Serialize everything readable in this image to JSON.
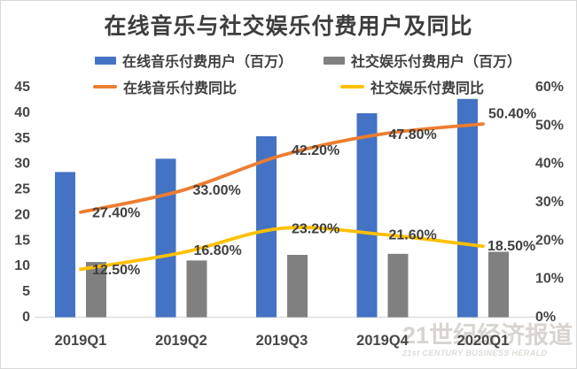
{
  "title": "在线音乐与社交娱乐付费用户及同比",
  "watermark": {
    "cn": "21世纪经济报道",
    "en": "21st CENTURY BUSINESS HERALD"
  },
  "colors": {
    "music_bar": "#4472C4",
    "social_bar": "#808080",
    "music_line": "#ED7D31",
    "social_line": "#FFC000",
    "axis_text": "#474747",
    "label_text": "#3f3f3f",
    "title_text": "#3d3d3d",
    "axis_line": "#d9d9d9"
  },
  "chart_data": {
    "type": "bar",
    "title": "在线音乐与社交娱乐付费用户及同比",
    "categories": [
      "2019Q1",
      "2019Q2",
      "2019Q3",
      "2019Q4",
      "2020Q1"
    ],
    "series": [
      {
        "name": "在线音乐付费用户（百万）",
        "type": "bar",
        "axis": "left",
        "color": "#4472C4",
        "values": [
          28.4,
          31.0,
          35.4,
          39.9,
          42.7
        ]
      },
      {
        "name": "社交娱乐付费用户（百万）",
        "type": "bar",
        "axis": "left",
        "color": "#808080",
        "values": [
          10.8,
          11.1,
          12.2,
          12.4,
          12.8
        ]
      },
      {
        "name": "在线音乐付费同比",
        "type": "line",
        "axis": "right",
        "color": "#ED7D31",
        "values": [
          27.4,
          33.0,
          42.2,
          47.8,
          50.4
        ],
        "point_labels": [
          "27.40%",
          "33.00%",
          "42.20%",
          "47.80%",
          "50.40%"
        ]
      },
      {
        "name": "社交娱乐付费同比",
        "type": "line",
        "axis": "right",
        "color": "#FFC000",
        "values": [
          12.5,
          16.8,
          23.2,
          21.6,
          18.5
        ],
        "point_labels": [
          "12.50%",
          "16.80%",
          "23.20%",
          "21.60%",
          "18.50%"
        ]
      }
    ],
    "left_axis": {
      "min": 0,
      "max": 45,
      "step": 5
    },
    "right_axis": {
      "min": 0,
      "max": 60,
      "step": 10,
      "suffix": "%"
    },
    "legend_position": "top",
    "grid": false
  }
}
